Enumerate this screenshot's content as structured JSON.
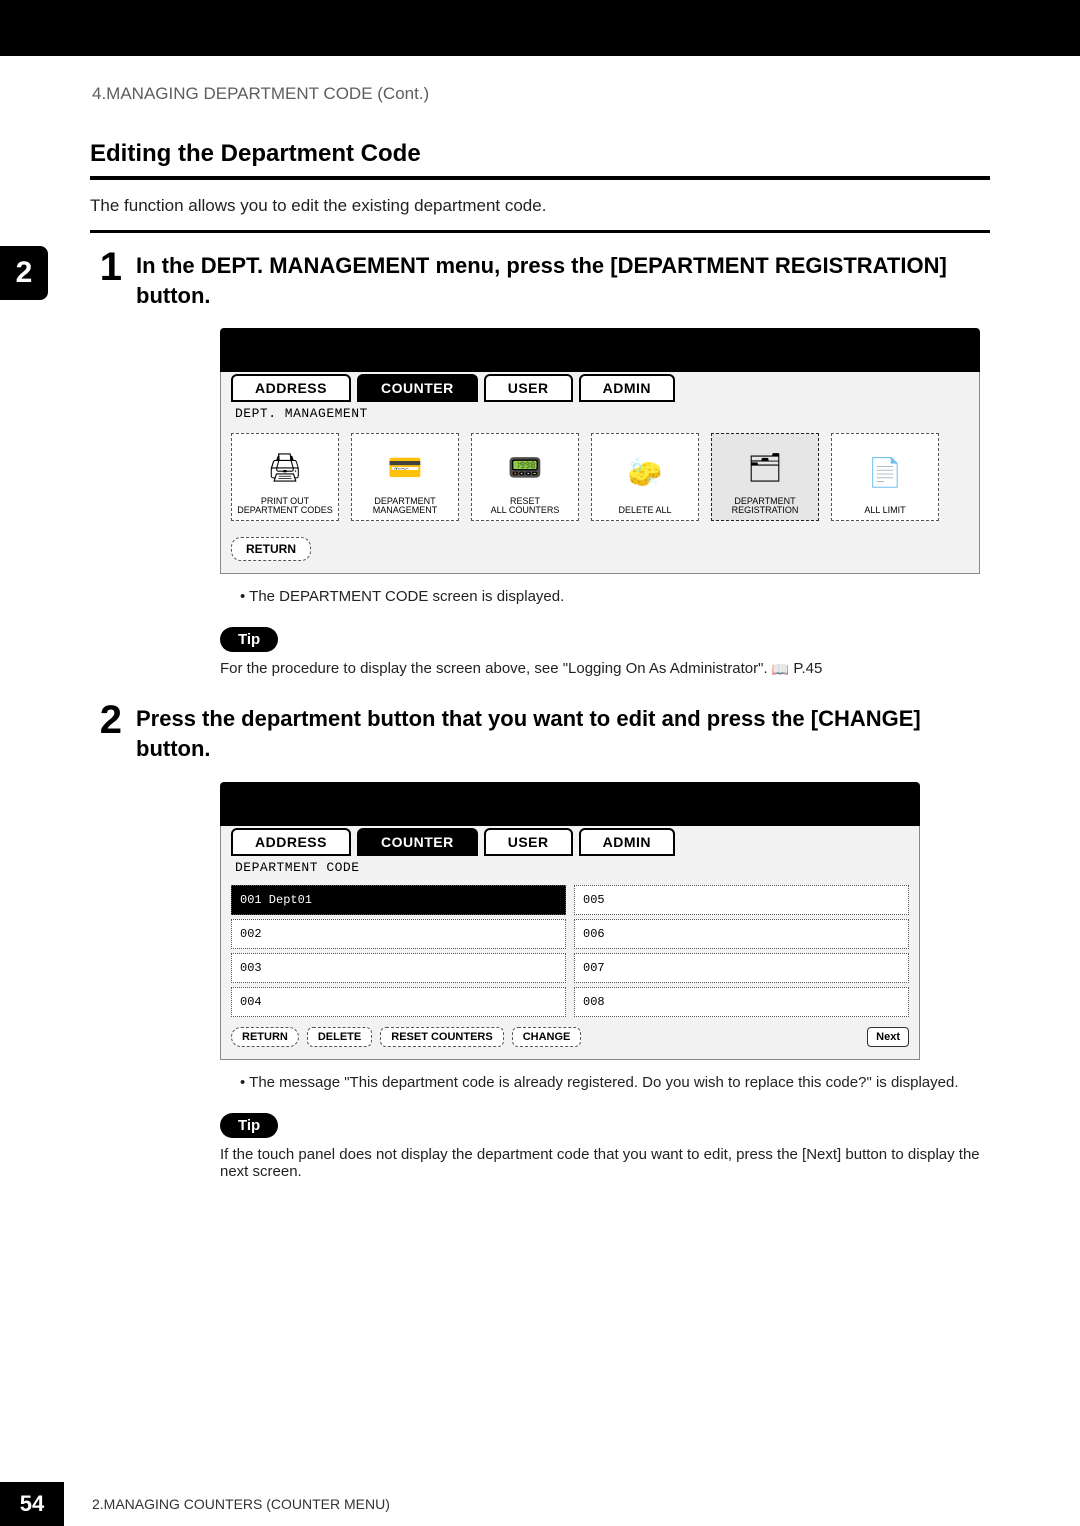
{
  "header": {
    "breadcrumb": "4.MANAGING DEPARTMENT CODE (Cont.)"
  },
  "side_badge": "2",
  "section": {
    "title": "Editing the Department Code",
    "intro": "The function allows you to edit the existing department code."
  },
  "step1": {
    "num": "1",
    "title": "In the DEPT. MANAGEMENT menu, press the [DEPARTMENT REGISTRATION] button.",
    "tabs": {
      "address": "ADDRESS",
      "counter": "COUNTER",
      "user": "USER",
      "admin": "ADMIN"
    },
    "subheader": "DEPT. MANAGEMENT",
    "icons": {
      "print_out": "PRINT OUT\nDEPARTMENT CODES",
      "dept_mgmt": "DEPARTMENT\nMANAGEMENT",
      "reset_all": "RESET\nALL COUNTERS",
      "delete_all": "DELETE ALL",
      "dept_reg": "DEPARTMENT\nREGISTRATION",
      "all_limit": "ALL LIMIT"
    },
    "return_btn": "RETURN",
    "bullet": "The DEPARTMENT CODE screen is displayed.",
    "tip_label": "Tip",
    "tip_text_a": "For the procedure to display the screen above, see \"Logging On As Administrator\".  ",
    "tip_text_b": " P.45"
  },
  "step2": {
    "num": "2",
    "title": "Press the department button that you want to edit and press the [CHANGE] button.",
    "tabs": {
      "address": "ADDRESS",
      "counter": "COUNTER",
      "user": "USER",
      "admin": "ADMIN"
    },
    "subheader": "DEPARTMENT CODE",
    "cells": {
      "c001": "001 Dept01",
      "c002": "002",
      "c003": "003",
      "c004": "004",
      "c005": "005",
      "c006": "006",
      "c007": "007",
      "c008": "008"
    },
    "buttons": {
      "return": "RETURN",
      "delete": "DELETE",
      "reset": "RESET COUNTERS",
      "change": "CHANGE",
      "next": "Next"
    },
    "bullet": "The message \"This department code is already registered.  Do you wish to replace this code?\" is displayed.",
    "tip_label": "Tip",
    "tip_text": "If the touch panel does not display the department code that you want to edit, press the [Next] button to display the next screen."
  },
  "footer": {
    "page_num": "54",
    "text": "2.MANAGING COUNTERS (COUNTER MENU)"
  }
}
